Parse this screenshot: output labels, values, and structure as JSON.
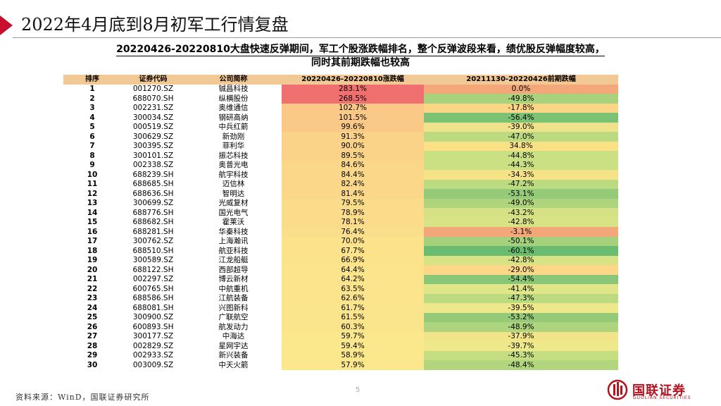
{
  "header": {
    "title": "2022年4月底到8月初军工行情复盘"
  },
  "subtitle": {
    "line1": "20220426-20220810大盘快速反弹期间，军工个股涨跌幅排名，整个反弹波段来看，绩优股反弹幅度较高，",
    "line2": "同时其前期跌幅也较高"
  },
  "table": {
    "headers": [
      "排序",
      "证券代码",
      "公司简称",
      "20220426-20220810涨跌幅",
      "20211130-20220426前期跌幅"
    ],
    "rows": [
      {
        "rank": "1",
        "code": "001270.SZ",
        "name": "铖昌科技",
        "up": "283.1%",
        "down": "0.0%",
        "up_color": "#f07070",
        "down_color": "#f4a87a"
      },
      {
        "rank": "2",
        "code": "688070.SH",
        "name": "纵横股份",
        "up": "268.5%",
        "down": "-49.8%",
        "up_color": "#f07070",
        "down_color": "#a9d27c"
      },
      {
        "rank": "3",
        "code": "002231.SZ",
        "name": "奥维通信",
        "up": "102.7%",
        "down": "-17.8%",
        "up_color": "#fac988",
        "down_color": "#fad685"
      },
      {
        "rank": "4",
        "code": "300034.SZ",
        "name": "钢研高纳",
        "up": "101.5%",
        "down": "-56.4%",
        "up_color": "#fac988",
        "down_color": "#7cc274"
      },
      {
        "rank": "5",
        "code": "000519.SZ",
        "name": "中兵红箭",
        "up": "99.6%",
        "down": "-39.0%",
        "up_color": "#fac988",
        "down_color": "#f0e28a"
      },
      {
        "rank": "6",
        "code": "300629.SZ",
        "name": "新劲刚",
        "up": "91.3%",
        "down": "-47.0%",
        "up_color": "#fad288",
        "down_color": "#bcdb80"
      },
      {
        "rank": "7",
        "code": "300395.SZ",
        "name": "菲利华",
        "up": "90.0%",
        "down": "34.8%",
        "up_color": "#fad288",
        "down_color": "#fbe186"
      },
      {
        "rank": "8",
        "code": "300101.SZ",
        "name": "振芯科技",
        "up": "89.5%",
        "down": "-44.8%",
        "up_color": "#fad288",
        "down_color": "#cbe083"
      },
      {
        "rank": "9",
        "code": "002338.SZ",
        "name": "奥普光电",
        "up": "84.6%",
        "down": "-44.3%",
        "up_color": "#fbd889",
        "down_color": "#cbe083"
      },
      {
        "rank": "10",
        "code": "688239.SH",
        "name": "航宇科技",
        "up": "84.4%",
        "down": "-34.3%",
        "up_color": "#fbd889",
        "down_color": "#f6e387"
      },
      {
        "rank": "11",
        "code": "688685.SH",
        "name": "迈信林",
        "up": "82.4%",
        "down": "-47.2%",
        "up_color": "#fbd889",
        "down_color": "#bcdb80"
      },
      {
        "rank": "12",
        "code": "688636.SH",
        "name": "智明达",
        "up": "81.4%",
        "down": "-53.1%",
        "up_color": "#fbd889",
        "down_color": "#95cb78"
      },
      {
        "rank": "13",
        "code": "300699.SZ",
        "name": "光威复材",
        "up": "79.5%",
        "down": "-49.0%",
        "up_color": "#fbdc8a",
        "down_color": "#aed47d"
      },
      {
        "rank": "14",
        "code": "688776.SH",
        "name": "国光电气",
        "up": "78.9%",
        "down": "-43.2%",
        "up_color": "#fbdc8a",
        "down_color": "#d4e285"
      },
      {
        "rank": "15",
        "code": "688682.SH",
        "name": "霍莱沃",
        "up": "78.1%",
        "down": "-42.8%",
        "up_color": "#fbdc8a",
        "down_color": "#d8e386"
      },
      {
        "rank": "16",
        "code": "688281.SH",
        "name": "华秦科技",
        "up": "76.4%",
        "down": "-3.1%",
        "up_color": "#fbde8b",
        "down_color": "#f4a87a"
      },
      {
        "rank": "17",
        "code": "300762.SZ",
        "name": "上海瀚讯",
        "up": "70.0%",
        "down": "-50.1%",
        "up_color": "#fbe28b",
        "down_color": "#a6d17c"
      },
      {
        "rank": "18",
        "code": "688510.SH",
        "name": "航亚科技",
        "up": "67.7%",
        "down": "-60.1%",
        "up_color": "#fbe28b",
        "down_color": "#6abd70"
      },
      {
        "rank": "19",
        "code": "300589.SZ",
        "name": "江龙船艇",
        "up": "66.9%",
        "down": "-42.8%",
        "up_color": "#fbe28b",
        "down_color": "#d8e386"
      },
      {
        "rank": "20",
        "code": "688122.SH",
        "name": "西部超导",
        "up": "64.4%",
        "down": "-29.0%",
        "up_color": "#fbe48c",
        "down_color": "#fbd787"
      },
      {
        "rank": "21",
        "code": "002297.SZ",
        "name": "博云新材",
        "up": "64.2%",
        "down": "-54.4%",
        "up_color": "#fbe48c",
        "down_color": "#89c776"
      },
      {
        "rank": "22",
        "code": "600765.SH",
        "name": "中航重机",
        "up": "63.5%",
        "down": "-41.4%",
        "up_color": "#fbe48c",
        "down_color": "#e0e587"
      },
      {
        "rank": "23",
        "code": "688586.SH",
        "name": "江航装备",
        "up": "62.6%",
        "down": "-47.3%",
        "up_color": "#fbe48c",
        "down_color": "#bcdb80"
      },
      {
        "rank": "24",
        "code": "688081.SH",
        "name": "兴图新科",
        "up": "61.7%",
        "down": "-39.5%",
        "up_color": "#fbe58c",
        "down_color": "#ede889"
      },
      {
        "rank": "25",
        "code": "300900.SZ",
        "name": "广联航空",
        "up": "61.5%",
        "down": "-53.2%",
        "up_color": "#fbe58c",
        "down_color": "#95cb78"
      },
      {
        "rank": "26",
        "code": "600893.SH",
        "name": "航发动力",
        "up": "60.3%",
        "down": "-48.9%",
        "up_color": "#fbe58c",
        "down_color": "#aed47d"
      },
      {
        "rank": "27",
        "code": "300177.SZ",
        "name": "中海达",
        "up": "59.7%",
        "down": "-37.9%",
        "up_color": "#fbe78c",
        "down_color": "#f2e488"
      },
      {
        "rank": "28",
        "code": "002829.SZ",
        "name": "星网宇达",
        "up": "59.4%",
        "down": "-39.7%",
        "up_color": "#fbe78c",
        "down_color": "#ede889"
      },
      {
        "rank": "29",
        "code": "002933.SZ",
        "name": "新兴装备",
        "up": "58.9%",
        "down": "-45.3%",
        "up_color": "#fbe78c",
        "down_color": "#c6de82"
      },
      {
        "rank": "30",
        "code": "003009.SZ",
        "name": "中天火箭",
        "up": "57.9%",
        "down": "-48.4%",
        "up_color": "#fbe78c",
        "down_color": "#b2d67e"
      }
    ]
  },
  "footer": {
    "source": "资料来源：WinD，国联证券研究所",
    "page_number": "5",
    "logo_text": "国联证券",
    "logo_sub": "GUOLIAN SECURITIES"
  },
  "colors": {
    "brand_red": "#b4121e",
    "header_fill": "#f2c894"
  }
}
